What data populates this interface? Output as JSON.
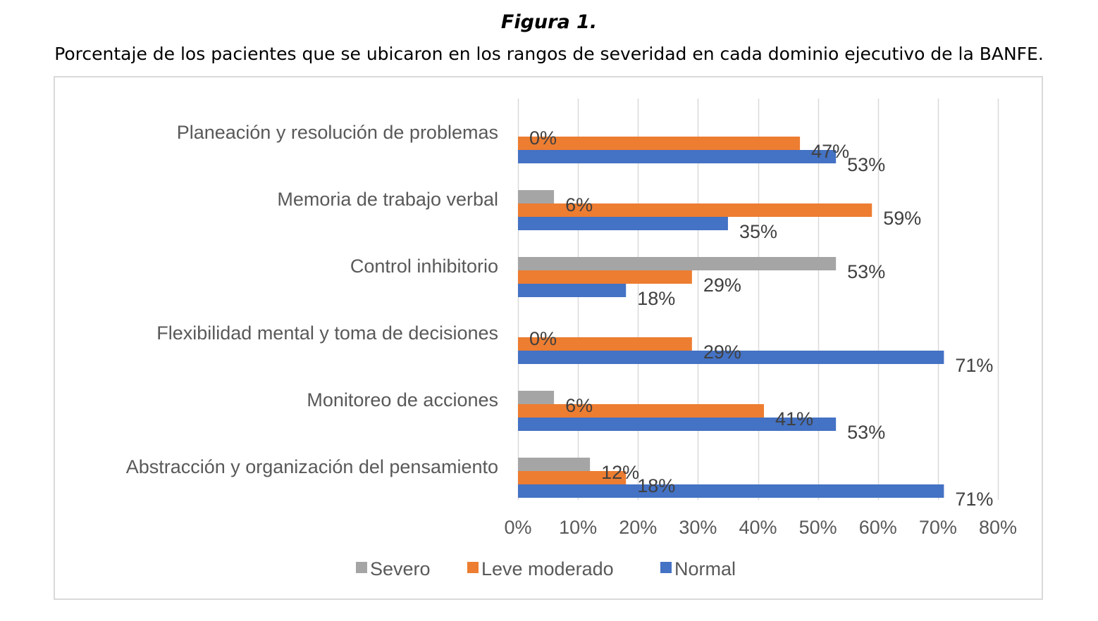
{
  "figure": {
    "label": "Figura 1.",
    "title": "Porcentaje de los pacientes que se ubicaron en los rangos de severidad en cada dominio ejecutivo de la BANFE."
  },
  "chart_data": {
    "type": "bar",
    "orientation": "horizontal",
    "categories": [
      "Planeación y resolución de problemas",
      "Memoria de trabajo verbal",
      "Control inhibitorio",
      "Flexibilidad mental y toma de decisiones",
      "Monitoreo de acciones",
      "Abstracción y organización del pensamiento"
    ],
    "series": [
      {
        "name": "Severo",
        "color": "#a5a5a5",
        "values": [
          0,
          6,
          53,
          0,
          6,
          12
        ],
        "labels": [
          "0%",
          "6%",
          "53%",
          "0%",
          "6%",
          "12%"
        ]
      },
      {
        "name": "Leve moderado",
        "color": "#ed7d31",
        "values": [
          47,
          59,
          29,
          29,
          41,
          18
        ],
        "labels": [
          "47%",
          "59%",
          "29%",
          "29%",
          "41%",
          "18%"
        ]
      },
      {
        "name": "Normal",
        "color": "#4472c4",
        "values": [
          53,
          35,
          18,
          71,
          53,
          71
        ],
        "labels": [
          "53%",
          "35%",
          "18%",
          "71%",
          "53%",
          "71%"
        ]
      }
    ],
    "xlim": [
      0,
      80
    ],
    "xticks": [
      "0%",
      "10%",
      "20%",
      "30%",
      "40%",
      "50%",
      "60%",
      "70%",
      "80%"
    ],
    "grid": true,
    "legend_position": "bottom",
    "gridline_color": "#d9d9d9"
  }
}
